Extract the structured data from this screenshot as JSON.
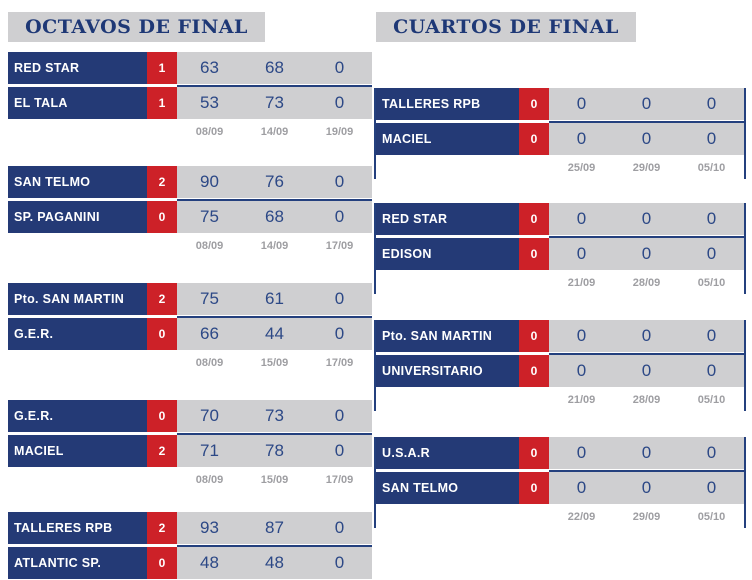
{
  "colors": {
    "navy_cell": "#243a76",
    "red_badge": "#cd2128",
    "gray_cell": "#cfcfd1",
    "header_text": "#1e3876",
    "score_text": "#2c4886",
    "date_text": "#9e9ea2",
    "divider": "#24407e"
  },
  "rounds": [
    {
      "title": "OCTAVOS DE FINAL",
      "matches": [
        {
          "teams": [
            {
              "name": "RED STAR",
              "wins": "1",
              "scores": [
                "63",
                "68",
                "0"
              ]
            },
            {
              "name": "EL TALA",
              "wins": "1",
              "scores": [
                "53",
                "73",
                "0"
              ]
            }
          ],
          "dates": [
            "08/09",
            "14/09",
            "19/09"
          ]
        },
        {
          "teams": [
            {
              "name": "SAN TELMO",
              "wins": "2",
              "scores": [
                "90",
                "76",
                "0"
              ]
            },
            {
              "name": "SP. PAGANINI",
              "wins": "0",
              "scores": [
                "75",
                "68",
                "0"
              ]
            }
          ],
          "dates": [
            "08/09",
            "14/09",
            "17/09"
          ]
        },
        {
          "teams": [
            {
              "name": "Pto. SAN MARTIN",
              "wins": "2",
              "scores": [
                "75",
                "61",
                "0"
              ]
            },
            {
              "name": "G.E.R.",
              "wins": "0",
              "scores": [
                "66",
                "44",
                "0"
              ]
            }
          ],
          "dates": [
            "08/09",
            "15/09",
            "17/09"
          ]
        },
        {
          "teams": [
            {
              "name": "G.E.R.",
              "wins": "0",
              "scores": [
                "70",
                "73",
                "0"
              ]
            },
            {
              "name": "MACIEL",
              "wins": "2",
              "scores": [
                "71",
                "78",
                "0"
              ]
            }
          ],
          "dates": [
            "08/09",
            "15/09",
            "17/09"
          ]
        },
        {
          "teams": [
            {
              "name": "TALLERES RPB",
              "wins": "2",
              "scores": [
                "93",
                "87",
                "0"
              ]
            },
            {
              "name": "ATLANTIC SP.",
              "wins": "0",
              "scores": [
                "48",
                "48",
                "0"
              ]
            }
          ],
          "dates": []
        }
      ]
    },
    {
      "title": "CUARTOS DE FINAL",
      "matches": [
        {
          "teams": [
            {
              "name": "TALLERES RPB",
              "wins": "0",
              "scores": [
                "0",
                "0",
                "0"
              ]
            },
            {
              "name": "MACIEL",
              "wins": "0",
              "scores": [
                "0",
                "0",
                "0"
              ]
            }
          ],
          "dates": [
            "25/09",
            "29/09",
            "05/10"
          ]
        },
        {
          "teams": [
            {
              "name": "RED STAR",
              "wins": "0",
              "scores": [
                "0",
                "0",
                "0"
              ]
            },
            {
              "name": "EDISON",
              "wins": "0",
              "scores": [
                "0",
                "0",
                "0"
              ]
            }
          ],
          "dates": [
            "21/09",
            "28/09",
            "05/10"
          ]
        },
        {
          "teams": [
            {
              "name": "Pto. SAN MARTIN",
              "wins": "0",
              "scores": [
                "0",
                "0",
                "0"
              ]
            },
            {
              "name": "UNIVERSITARIO",
              "wins": "0",
              "scores": [
                "0",
                "0",
                "0"
              ]
            }
          ],
          "dates": [
            "21/09",
            "28/09",
            "05/10"
          ]
        },
        {
          "teams": [
            {
              "name": "U.S.A.R",
              "wins": "0",
              "scores": [
                "0",
                "0",
                "0"
              ]
            },
            {
              "name": "SAN TELMO",
              "wins": "0",
              "scores": [
                "0",
                "0",
                "0"
              ]
            }
          ],
          "dates": [
            "22/09",
            "29/09",
            "05/10"
          ]
        }
      ]
    }
  ]
}
